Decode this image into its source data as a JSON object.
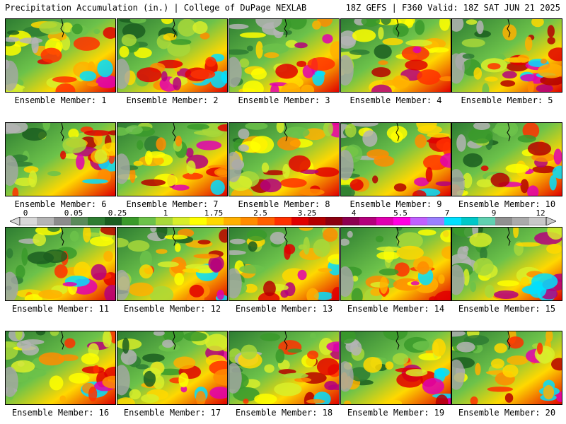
{
  "header": {
    "left": "Precipitation Accumulation (in.) | College of DuPage NEXLAB",
    "right": "18Z GEFS | F360 Valid: 18Z SAT JUN 21 2025"
  },
  "legend": {
    "tick_labels": [
      "0",
      "0.05",
      "0.25",
      "1",
      "1.75",
      "2.5",
      "3.25",
      "4",
      "5.5",
      "7",
      "9",
      "12"
    ],
    "colors": [
      "#d8d8d8",
      "#b4b4b4",
      "#8c8c8c",
      "#5a8a5a",
      "#2e7d32",
      "#1b5e20",
      "#3a9a2a",
      "#6cc24a",
      "#a8d83a",
      "#d8ee2a",
      "#ffff00",
      "#ffd800",
      "#ffb000",
      "#ff8c00",
      "#ff6000",
      "#ff3000",
      "#e00000",
      "#b40000",
      "#8c0010",
      "#8c0050",
      "#b4007c",
      "#e000b0",
      "#ff00e0",
      "#c060ff",
      "#9a80ff",
      "#00e0ff",
      "#00c8c8",
      "#60d0b0",
      "#909090",
      "#aaaaaa",
      "#c8c8c8"
    ]
  },
  "panels": [
    {
      "label": "Ensemble Member: 1"
    },
    {
      "label": "Ensemble Member: 2"
    },
    {
      "label": "Ensemble Member: 3"
    },
    {
      "label": "Ensemble Member: 4"
    },
    {
      "label": "Ensemble Member: 5"
    },
    {
      "label": "Ensemble Member: 6"
    },
    {
      "label": "Ensemble Member: 7"
    },
    {
      "label": "Ensemble Member: 8"
    },
    {
      "label": "Ensemble Member: 9"
    },
    {
      "label": "Ensemble Member: 10"
    },
    {
      "label": "Ensemble Member: 11"
    },
    {
      "label": "Ensemble Member: 12"
    },
    {
      "label": "Ensemble Member: 13"
    },
    {
      "label": "Ensemble Member: 14"
    },
    {
      "label": "Ensemble Member: 15"
    },
    {
      "label": "Ensemble Member: 16"
    },
    {
      "label": "Ensemble Member: 17"
    },
    {
      "label": "Ensemble Member: 18"
    },
    {
      "label": "Ensemble Member: 19"
    },
    {
      "label": "Ensemble Member: 20"
    }
  ]
}
